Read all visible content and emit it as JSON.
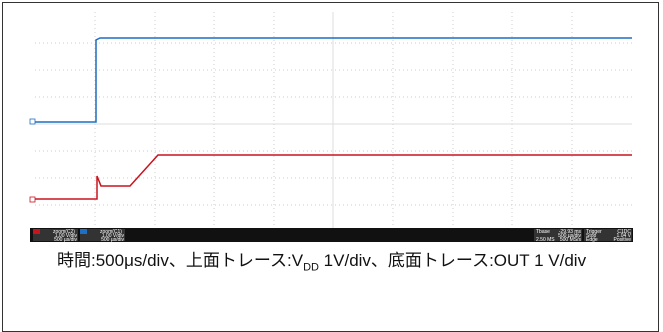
{
  "scope": {
    "channels": [
      {
        "label": "zoom(C2)",
        "scale": "1.00 V/div",
        "timebase": "500 µs/div"
      },
      {
        "label": "zoom(C1)",
        "scale": "1.00 V/div",
        "timebase": "500 µs/div"
      }
    ],
    "tbase": {
      "label": "Tbase",
      "offset": "-29.93 ms",
      "timebase": "500 µs/div",
      "samples": "2.50 MS",
      "rate": "500 MS/s"
    },
    "trigger": {
      "label": "Trigger",
      "source": "C1DC",
      "mode": "Stop",
      "level": "1.04 V",
      "type": "Edge",
      "slope": "Positive"
    }
  },
  "caption": {
    "part1": "時間:500μs/div、上面トレース:V",
    "subscript": "DD",
    "part2": " 1V/div、底面トレース:OUT 1 V/div"
  }
}
